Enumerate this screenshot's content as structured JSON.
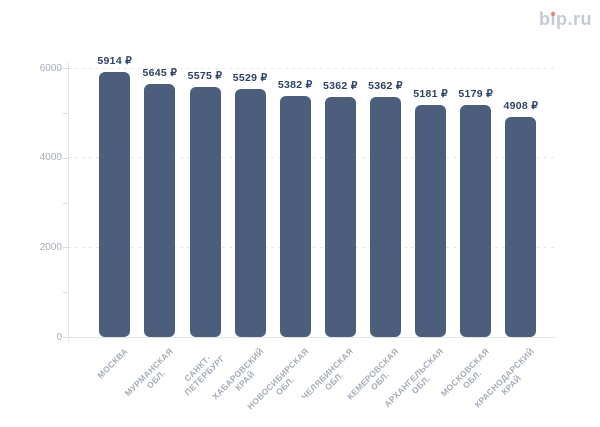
{
  "logo": {
    "text": "bip.ru",
    "dot_color": "#ee7e61",
    "text_color": "#c6cad7"
  },
  "chart_data": {
    "type": "bar",
    "title": "",
    "xlabel": "",
    "ylabel": "",
    "legend": "none",
    "grid": "dashed horizontal lines at labeled ticks",
    "categories": [
      [
        "МОСКВА"
      ],
      [
        "МУРМАНСКАЯ",
        "ОБЛ."
      ],
      [
        "САНКТ-",
        "ПЕТЕРБУРГ"
      ],
      [
        "ХАБАРОВСКИЙ",
        "КРАЙ"
      ],
      [
        "НОВОСИБИРСКАЯ",
        "ОБЛ."
      ],
      [
        "ЧЕЛЯБИНСКАЯ",
        "ОБЛ."
      ],
      [
        "КЕМЕРОВСКАЯ",
        "ОБЛ."
      ],
      [
        "АРХАНГЕЛЬСКАЯ",
        "ОБЛ."
      ],
      [
        "МОСКОВСКАЯ",
        "ОБЛ."
      ],
      [
        "КРАСНОДАРСКИЙ",
        "КРАЙ"
      ]
    ],
    "values": [
      5914,
      5645,
      5575,
      5529,
      5382,
      5362,
      5362,
      5181,
      5179,
      4908
    ],
    "value_labels": [
      "5914 ₽",
      "5645 ₽",
      "5575 ₽",
      "5529 ₽",
      "5382 ₽",
      "5362 ₽",
      "5362 ₽",
      "5181 ₽",
      "5179 ₽",
      "4908 ₽"
    ],
    "value_suffix": "₽",
    "ylim": [
      0,
      6000
    ],
    "yticks": [
      0,
      2000,
      4000,
      6000
    ],
    "minor_tick_step": 1000,
    "colors": {
      "bar": "#4b5f7d",
      "value_label": "#2e4266",
      "axis_label": "#a6adb9",
      "category_label": "#a6adb9",
      "grid_line": "#e3e6ec",
      "axis_line": "#e3e6eb"
    }
  }
}
